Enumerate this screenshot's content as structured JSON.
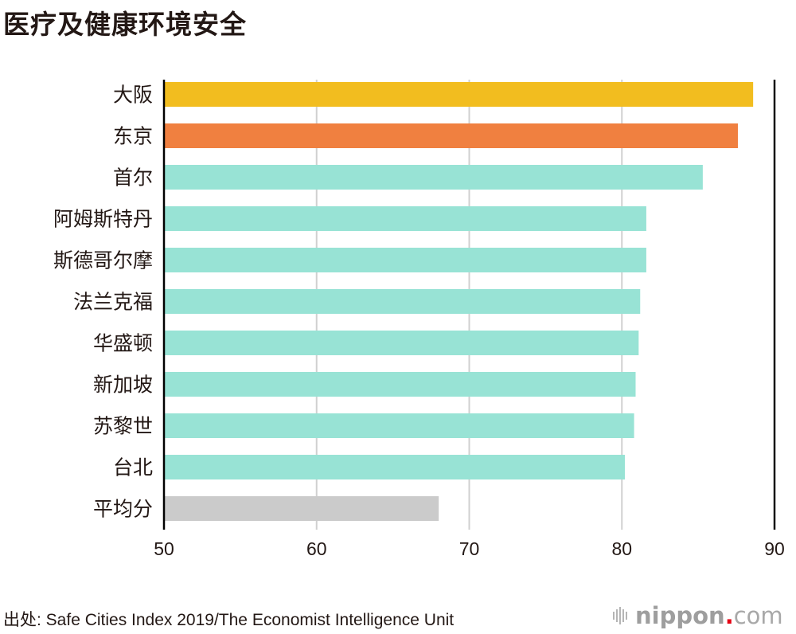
{
  "title": "医疗及健康环境安全",
  "source": "出处: Safe Cities Index 2019/The Economist Intelligence Unit",
  "logo": {
    "brand": "nippon",
    "dot": ".",
    "suffix": "com"
  },
  "colors": {
    "highlight_osaka": "#F2BD1F",
    "highlight_tokyo": "#F08040",
    "default": "#98E3D5",
    "average": "#CBCBCB",
    "gridline": "#D0D0D0",
    "axis": "#000000"
  },
  "chart_data": {
    "type": "bar",
    "orientation": "horizontal",
    "title": "医疗及健康环境安全",
    "xlabel": "",
    "ylabel": "",
    "xlim": [
      50,
      90
    ],
    "xticks": [
      50,
      60,
      70,
      80,
      90
    ],
    "grid": true,
    "categories": [
      "大阪",
      "东京",
      "首尔",
      "阿姆斯特丹",
      "斯德哥尔摩",
      "法兰克福",
      "华盛顿",
      "新加坡",
      "苏黎世",
      "台北",
      "平均分"
    ],
    "values": [
      88.6,
      87.6,
      85.3,
      81.6,
      81.6,
      81.2,
      81.1,
      80.9,
      80.8,
      80.2,
      68.0
    ],
    "bar_colors": [
      "#F2BD1F",
      "#F08040",
      "#98E3D5",
      "#98E3D5",
      "#98E3D5",
      "#98E3D5",
      "#98E3D5",
      "#98E3D5",
      "#98E3D5",
      "#98E3D5",
      "#CBCBCB"
    ]
  }
}
